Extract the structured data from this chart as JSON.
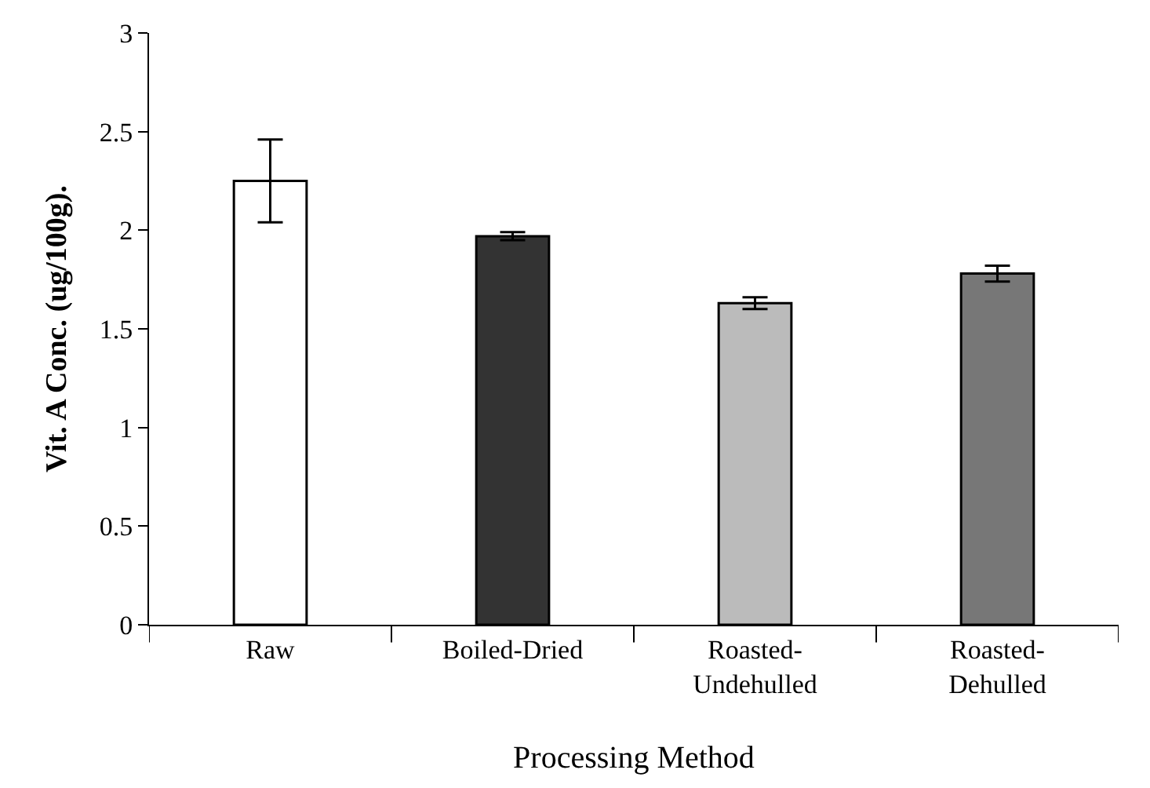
{
  "chart_data": {
    "type": "bar",
    "xlabel": "Processing Method",
    "ylabel": "Vit. A Conc. (ug/100g).",
    "categories": [
      "Raw",
      "Boiled-Dried",
      "Roasted-\nUndehulled",
      "Roasted-\nDehulled"
    ],
    "values": [
      2.25,
      1.97,
      1.63,
      1.78
    ],
    "errors": [
      0.21,
      0.02,
      0.03,
      0.04
    ],
    "colors": [
      "#ffffff",
      "#333333",
      "#bbbbbb",
      "#777777"
    ],
    "ylim": [
      0,
      3
    ],
    "yticks": [
      0,
      0.5,
      1,
      1.5,
      2,
      2.5,
      3
    ]
  }
}
